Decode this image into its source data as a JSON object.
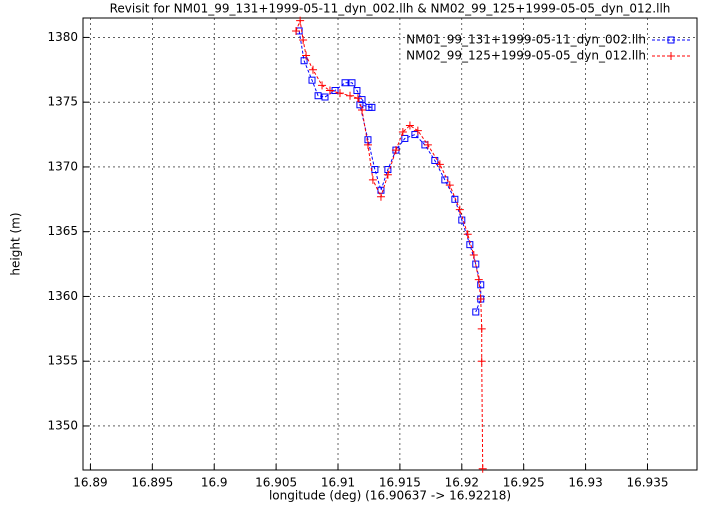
{
  "chart_data": {
    "type": "line",
    "title": "Revisit for NM01_99_131+1999-05-11_dyn_002.llh & NM02_99_125+1999-05-05_dyn_012.llh",
    "x_label": "longitude (deg) (16.90637 -> 16.92218)",
    "y_label": "height (m)",
    "xlim": [
      16.8894,
      16.939
    ],
    "ylim": [
      1346.6,
      1381.5
    ],
    "xticks": [
      16.89,
      16.895,
      16.9,
      16.905,
      16.91,
      16.915,
      16.92,
      16.925,
      16.93,
      16.935
    ],
    "yticks": [
      1350,
      1355,
      1360,
      1365,
      1370,
      1375,
      1380
    ],
    "grid": true,
    "legend": "upper right",
    "series": [
      {
        "name": "NM01_99_131+1999-05-11_dyn_002.llh",
        "color": "#0000ff",
        "marker": "square",
        "x": [
          16.90686,
          16.90726,
          16.9079,
          16.90839,
          16.90895,
          16.90976,
          16.91057,
          16.91113,
          16.91153,
          16.91194,
          16.9125,
          16.91274,
          16.91177,
          16.91242,
          16.91298,
          16.91347,
          16.91403,
          16.91468,
          16.9154,
          16.91621,
          16.91702,
          16.91782,
          16.91863,
          16.91944,
          16.92,
          16.92065,
          16.92113,
          16.92153,
          16.92153,
          16.92113
        ],
        "values": [
          1380.5,
          1378.2,
          1376.7,
          1375.5,
          1375.4,
          1375.9,
          1376.5,
          1376.5,
          1375.9,
          1375.2,
          1374.6,
          1374.6,
          1374.8,
          1372.1,
          1369.8,
          1368.2,
          1369.8,
          1371.3,
          1372.2,
          1372.5,
          1371.7,
          1370.5,
          1369.0,
          1367.5,
          1365.9,
          1364.0,
          1362.5,
          1360.9,
          1359.8,
          1358.8
        ]
      },
      {
        "name": "NM02_99_125+1999-05-05_dyn_012.llh",
        "color": "#ff0000",
        "marker": "plus",
        "x": [
          16.90661,
          16.90694,
          16.90718,
          16.90742,
          16.90798,
          16.90871,
          16.90935,
          16.91016,
          16.91097,
          16.91161,
          16.91194,
          16.91242,
          16.91282,
          16.91347,
          16.91403,
          16.91468,
          16.91524,
          16.91581,
          16.91645,
          16.91726,
          16.91823,
          16.91903,
          16.91984,
          16.92048,
          16.92097,
          16.92137,
          16.92153,
          16.92161,
          16.92161,
          16.92169
        ],
        "values": [
          1380.5,
          1381.3,
          1379.8,
          1378.6,
          1377.5,
          1376.3,
          1375.9,
          1375.7,
          1375.5,
          1375.3,
          1374.4,
          1371.7,
          1369.0,
          1367.7,
          1369.4,
          1371.3,
          1372.7,
          1373.2,
          1372.8,
          1371.7,
          1370.2,
          1368.6,
          1366.7,
          1364.8,
          1363.2,
          1361.3,
          1359.8,
          1357.5,
          1355.0,
          1346.7
        ]
      }
    ]
  }
}
